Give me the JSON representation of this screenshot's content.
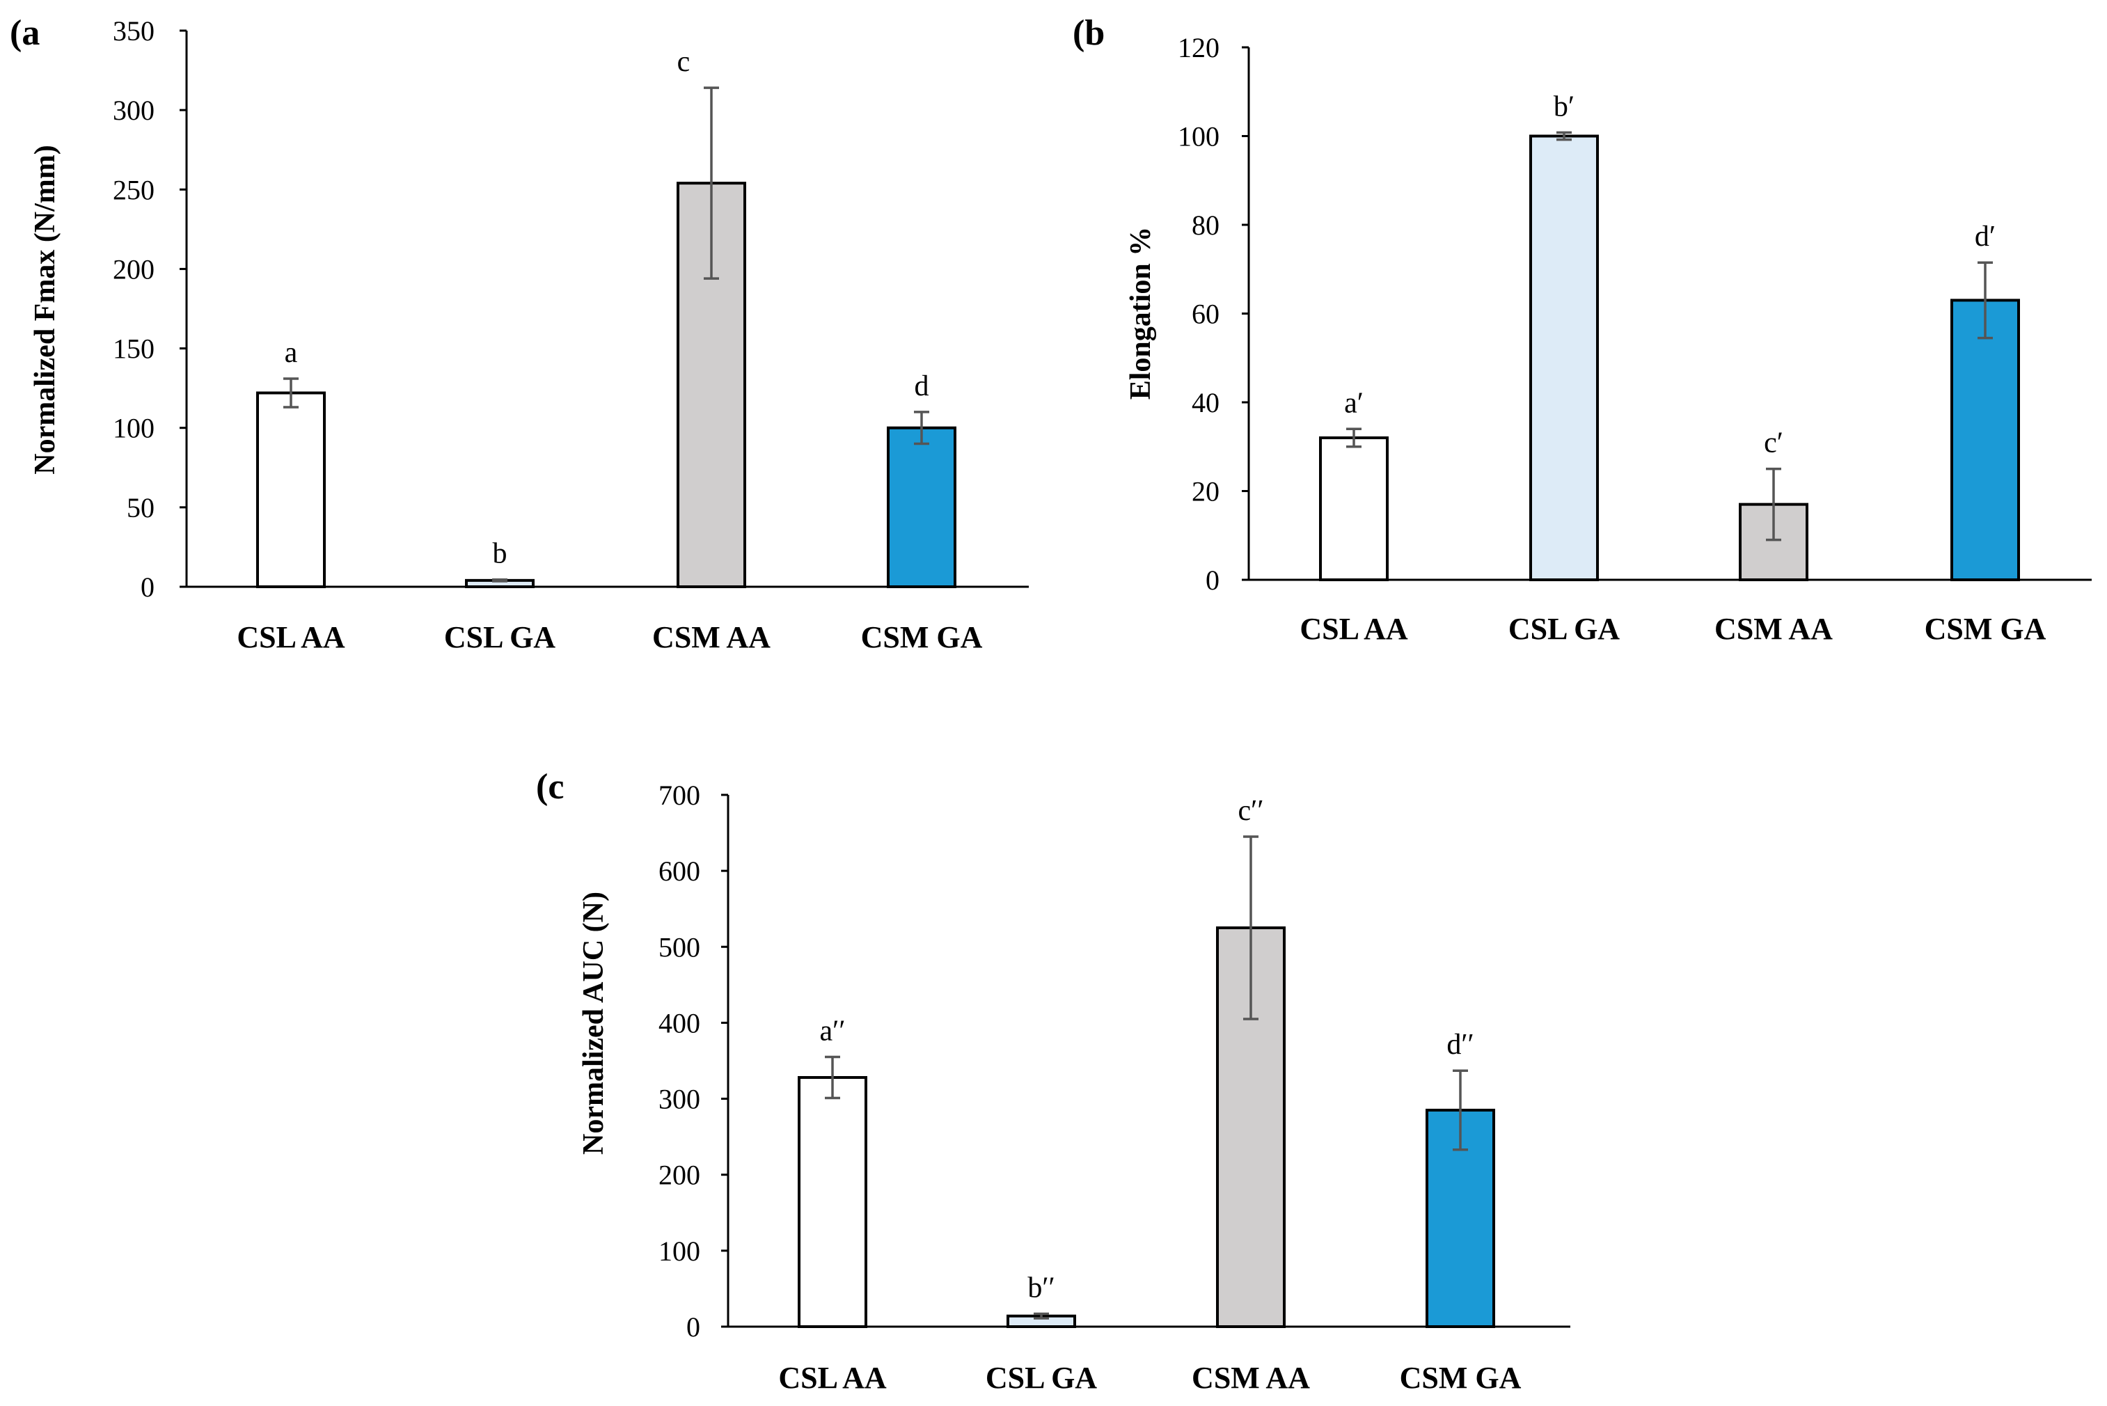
{
  "panels": {
    "a": {
      "label": "(a"
    },
    "b": {
      "label": "(b"
    },
    "c": {
      "label": "(c"
    }
  },
  "chart_data": [
    {
      "id": "a",
      "type": "bar",
      "ylabel": "Normalized Fmax (N/mm)",
      "xlabel": "",
      "categories": [
        "CSL AA",
        "CSL GA",
        "CSM AA",
        "CSM GA"
      ],
      "values": [
        122,
        4,
        254,
        100
      ],
      "errors": [
        9,
        0.5,
        60,
        10
      ],
      "letters": [
        "a",
        "b",
        "c",
        "d"
      ],
      "colors": [
        "#ffffff",
        "#ddebf7",
        "#d0cece",
        "#1b9ad6"
      ],
      "ylim": [
        0,
        350
      ],
      "yticks": [
        0,
        50,
        100,
        150,
        200,
        250,
        300,
        350
      ]
    },
    {
      "id": "b",
      "type": "bar",
      "ylabel": "Elongation %",
      "xlabel": "",
      "categories": [
        "CSL AA",
        "CSL GA",
        "CSM AA",
        "CSM GA"
      ],
      "values": [
        32,
        100,
        17,
        63
      ],
      "errors": [
        2,
        0.8,
        8,
        8.5
      ],
      "letters": [
        "a′",
        "b′",
        "c′",
        "d′"
      ],
      "colors": [
        "#ffffff",
        "#ddebf7",
        "#d0cece",
        "#1b9ad6"
      ],
      "ylim": [
        0,
        120
      ],
      "yticks": [
        0,
        20,
        40,
        60,
        80,
        100,
        120
      ]
    },
    {
      "id": "c",
      "type": "bar",
      "ylabel": "Normalized AUC (N)",
      "xlabel": "",
      "categories": [
        "CSL AA",
        "CSL GA",
        "CSM AA",
        "CSM GA"
      ],
      "values": [
        328,
        14,
        525,
        285
      ],
      "errors": [
        27,
        3,
        120,
        52
      ],
      "letters": [
        "a′′",
        "b′′",
        "c′′",
        "d′′"
      ],
      "colors": [
        "#ffffff",
        "#ddebf7",
        "#d0cece",
        "#1b9ad6"
      ],
      "ylim": [
        0,
        700
      ],
      "yticks": [
        0,
        100,
        200,
        300,
        400,
        500,
        600,
        700
      ]
    }
  ]
}
